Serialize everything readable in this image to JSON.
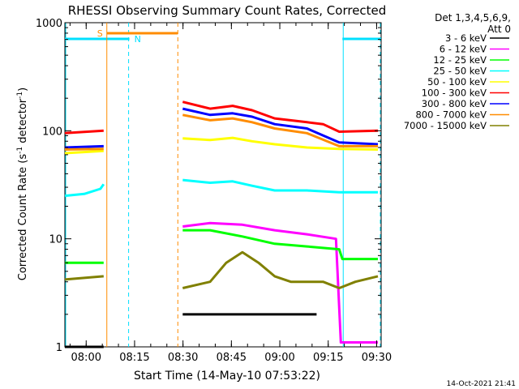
{
  "chart_data": {
    "type": "line",
    "title": "RHESSI Observing Summary Count Rates, Corrected",
    "xlabel": "Start Time (14-May-10 07:53:22)",
    "ylabel_main": "Corrected Count Rate (s",
    "ylabel_sup1": "-1",
    "ylabel_mid": " detector",
    "ylabel_sup2": "-1",
    "ylabel_end": ")",
    "y_scale": "log",
    "ylim": [
      1,
      1000
    ],
    "xlim_minutes_since_start": [
      0,
      98
    ],
    "x_ticks": [
      {
        "label": "08:00",
        "t": 6.6
      },
      {
        "label": "08:15",
        "t": 21.6
      },
      {
        "label": "08:30",
        "t": 36.6
      },
      {
        "label": "08:45",
        "t": 51.6
      },
      {
        "label": "09:00",
        "t": 66.6
      },
      {
        "label": "09:15",
        "t": 81.6
      },
      {
        "label": "09:30",
        "t": 96.6
      }
    ],
    "y_ticks": [
      {
        "label": "1",
        "v": 1
      },
      {
        "label": "10",
        "v": 10
      },
      {
        "label": "100",
        "v": 100
      },
      {
        "label": "1000",
        "v": 1000
      }
    ],
    "legend_header": [
      "Det 1,3,4,5,6,9,",
      "Att 0"
    ],
    "legend_position": "right",
    "series": [
      {
        "name": "3 - 6 keV",
        "color": "#000000",
        "points": [
          [
            0,
            1
          ],
          [
            12,
            1
          ],
          [
            13.5,
            1
          ],
          [
            36.5,
            2
          ],
          [
            55,
            2
          ],
          [
            65,
            2
          ],
          [
            77,
            2
          ],
          [
            78,
            2
          ]
        ]
      },
      {
        "name": "6 - 12 keV",
        "color": "#ff00ff",
        "points": [
          [
            36.5,
            13
          ],
          [
            45,
            14
          ],
          [
            55,
            13.5
          ],
          [
            65,
            12
          ],
          [
            75,
            11
          ],
          [
            84,
            10
          ],
          [
            85.5,
            1.1
          ],
          [
            97,
            1.1
          ]
        ]
      },
      {
        "name": "12 - 25 keV",
        "color": "#00ff00",
        "points": [
          [
            0,
            6
          ],
          [
            12,
            6
          ],
          [
            36.5,
            12
          ],
          [
            45,
            12
          ],
          [
            55,
            10.5
          ],
          [
            65,
            9
          ],
          [
            75,
            8.5
          ],
          [
            85,
            8
          ],
          [
            86,
            6.5
          ],
          [
            97,
            6.5
          ]
        ]
      },
      {
        "name": "25 - 50 keV",
        "color": "#00ffff",
        "points": [
          [
            0,
            25
          ],
          [
            6,
            26
          ],
          [
            11,
            29
          ],
          [
            12,
            32
          ],
          [
            36.5,
            35
          ],
          [
            45,
            33
          ],
          [
            52,
            34
          ],
          [
            58,
            31
          ],
          [
            65,
            28
          ],
          [
            75,
            28
          ],
          [
            85,
            27
          ],
          [
            97,
            27
          ]
        ]
      },
      {
        "name": "50 - 100 keV",
        "color": "#ffff00",
        "points": [
          [
            0,
            62
          ],
          [
            12,
            65
          ],
          [
            36.5,
            85
          ],
          [
            45,
            82
          ],
          [
            52,
            86
          ],
          [
            58,
            80
          ],
          [
            65,
            75
          ],
          [
            75,
            70
          ],
          [
            85,
            68
          ],
          [
            97,
            67
          ]
        ]
      },
      {
        "name": "100 - 300 keV",
        "color": "#ff0000",
        "points": [
          [
            0,
            95
          ],
          [
            12,
            100
          ],
          [
            36.5,
            185
          ],
          [
            45,
            160
          ],
          [
            52,
            170
          ],
          [
            58,
            155
          ],
          [
            65,
            130
          ],
          [
            75,
            120
          ],
          [
            80,
            115
          ],
          [
            85,
            98
          ],
          [
            97,
            100
          ]
        ]
      },
      {
        "name": "300 - 800 keV",
        "color": "#0000ff",
        "points": [
          [
            0,
            70
          ],
          [
            12,
            72
          ],
          [
            36.5,
            160
          ],
          [
            45,
            140
          ],
          [
            52,
            145
          ],
          [
            58,
            135
          ],
          [
            65,
            115
          ],
          [
            75,
            105
          ],
          [
            85,
            78
          ],
          [
            97,
            75
          ]
        ]
      },
      {
        "name": "800 - 7000 keV",
        "color": "#ff8c00",
        "points": [
          [
            0,
            67
          ],
          [
            12,
            68
          ],
          [
            36.5,
            140
          ],
          [
            45,
            125
          ],
          [
            52,
            130
          ],
          [
            58,
            120
          ],
          [
            65,
            105
          ],
          [
            75,
            95
          ],
          [
            85,
            72
          ],
          [
            97,
            72
          ]
        ]
      },
      {
        "name": "7000 - 15000 keV",
        "color": "#808000",
        "points": [
          [
            0,
            4.2
          ],
          [
            12,
            4.5
          ],
          [
            36.5,
            3.5
          ],
          [
            45,
            4
          ],
          [
            50,
            6
          ],
          [
            55,
            7.5
          ],
          [
            60,
            6
          ],
          [
            65,
            4.5
          ],
          [
            70,
            4
          ],
          [
            80,
            4
          ],
          [
            85,
            3.5
          ],
          [
            90,
            4
          ],
          [
            97,
            4.5
          ]
        ]
      }
    ],
    "annotations": {
      "saa_label": "S",
      "night_label": "N",
      "saa_range": [
        13,
        35
      ],
      "night_ranges": [
        [
          0,
          20
        ],
        [
          86,
          98
        ]
      ]
    },
    "footer_date": "14-Oct-2021 21:41"
  }
}
